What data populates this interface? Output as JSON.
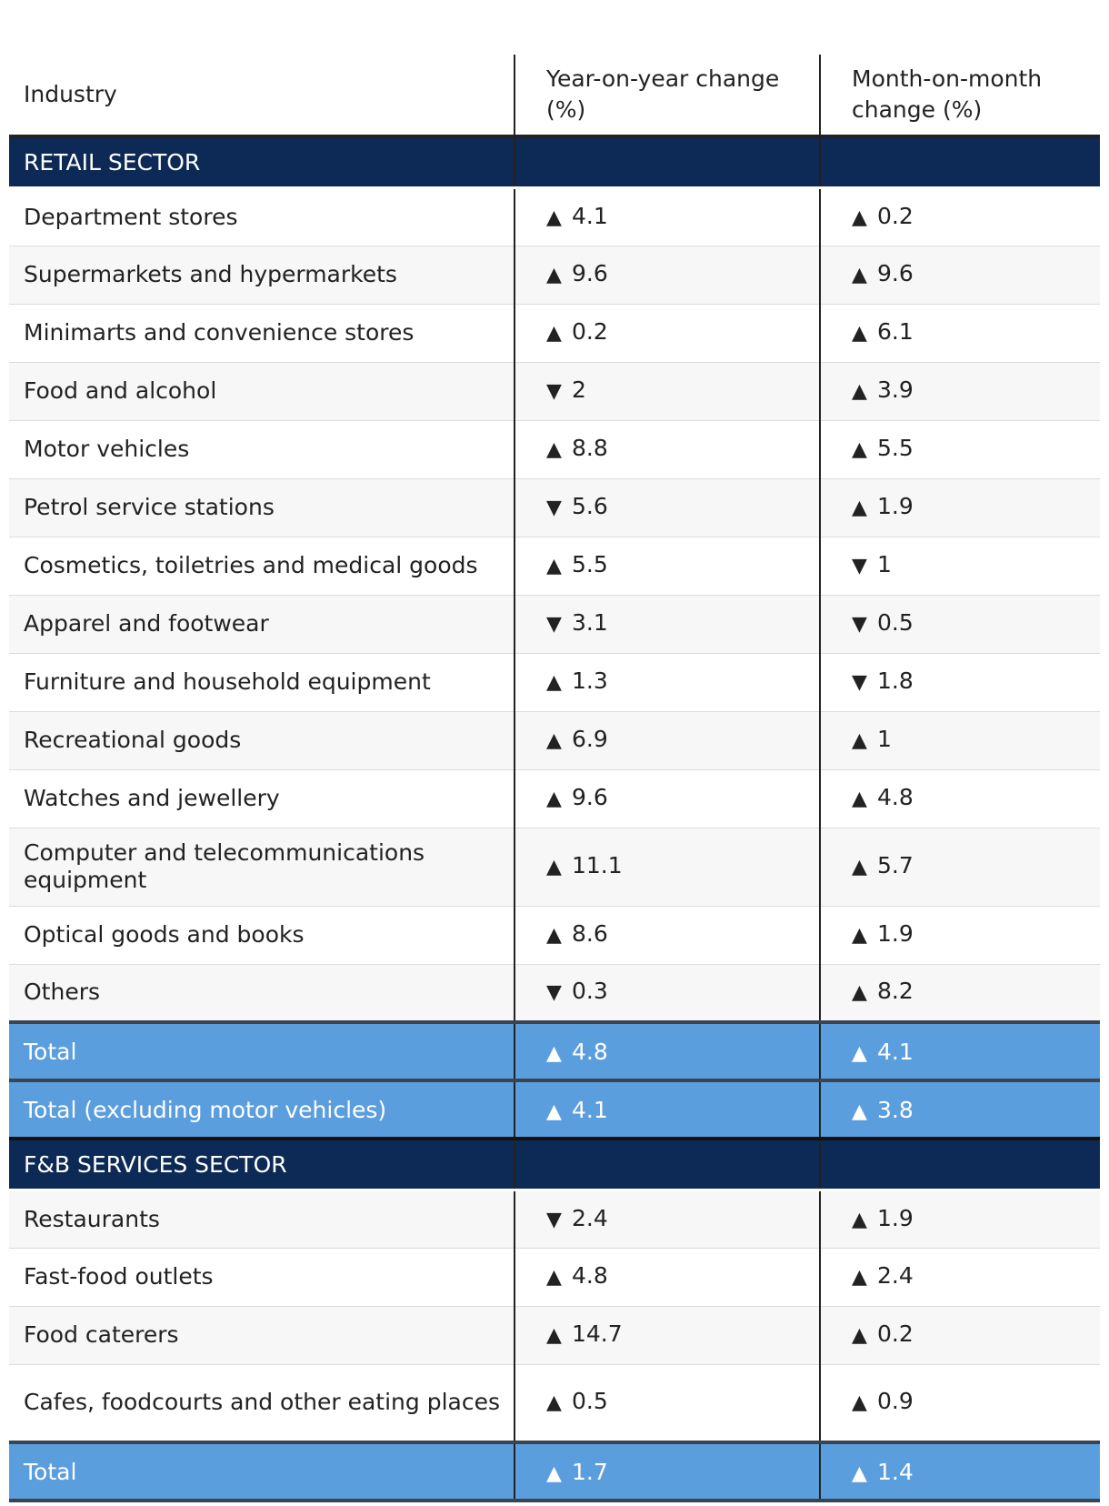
{
  "chart_data": {
    "type": "table",
    "columns": [
      "Industry",
      "Year-on-year change (%)",
      "Month-on-month change (%)"
    ],
    "sections": [
      {
        "name": "RETAIL SECTOR",
        "rows": [
          {
            "industry": "Department stores",
            "yoy": {
              "dir": "up",
              "value": "4.1"
            },
            "mom": {
              "dir": "up",
              "value": "0.2"
            }
          },
          {
            "industry": "Supermarkets and hypermarkets",
            "yoy": {
              "dir": "up",
              "value": "9.6"
            },
            "mom": {
              "dir": "up",
              "value": "9.6"
            }
          },
          {
            "industry": "Minimarts and convenience stores",
            "yoy": {
              "dir": "up",
              "value": "0.2"
            },
            "mom": {
              "dir": "up",
              "value": "6.1"
            }
          },
          {
            "industry": "Food and alcohol",
            "yoy": {
              "dir": "down",
              "value": "2"
            },
            "mom": {
              "dir": "up",
              "value": "3.9"
            }
          },
          {
            "industry": "Motor vehicles",
            "yoy": {
              "dir": "up",
              "value": "8.8"
            },
            "mom": {
              "dir": "up",
              "value": "5.5"
            }
          },
          {
            "industry": "Petrol service stations",
            "yoy": {
              "dir": "down",
              "value": "5.6"
            },
            "mom": {
              "dir": "up",
              "value": "1.9"
            }
          },
          {
            "industry": "Cosmetics, toiletries and medical goods",
            "yoy": {
              "dir": "up",
              "value": "5.5"
            },
            "mom": {
              "dir": "down",
              "value": "1"
            }
          },
          {
            "industry": "Apparel and footwear",
            "yoy": {
              "dir": "down",
              "value": "3.1"
            },
            "mom": {
              "dir": "down",
              "value": "0.5"
            }
          },
          {
            "industry": "Furniture and household equipment",
            "yoy": {
              "dir": "up",
              "value": "1.3"
            },
            "mom": {
              "dir": "down",
              "value": "1.8"
            }
          },
          {
            "industry": "Recreational goods",
            "yoy": {
              "dir": "up",
              "value": "6.9"
            },
            "mom": {
              "dir": "up",
              "value": "1"
            }
          },
          {
            "industry": "Watches and jewellery",
            "yoy": {
              "dir": "up",
              "value": "9.6"
            },
            "mom": {
              "dir": "up",
              "value": "4.8"
            }
          },
          {
            "industry": "Computer and telecommunications equipment",
            "yoy": {
              "dir": "up",
              "value": "11.1"
            },
            "mom": {
              "dir": "up",
              "value": "5.7"
            }
          },
          {
            "industry": "Optical goods and books",
            "yoy": {
              "dir": "up",
              "value": "8.6"
            },
            "mom": {
              "dir": "up",
              "value": "1.9"
            }
          },
          {
            "industry": "Others",
            "yoy": {
              "dir": "down",
              "value": "0.3"
            },
            "mom": {
              "dir": "up",
              "value": "8.2"
            }
          }
        ],
        "totals": [
          {
            "industry": "Total",
            "yoy": {
              "dir": "up",
              "value": "4.8"
            },
            "mom": {
              "dir": "up",
              "value": "4.1"
            }
          },
          {
            "industry": "Total (excluding motor vehicles)",
            "yoy": {
              "dir": "up",
              "value": "4.1"
            },
            "mom": {
              "dir": "up",
              "value": "3.8"
            }
          }
        ]
      },
      {
        "name": "F&B SERVICES SECTOR",
        "rows": [
          {
            "industry": "Restaurants",
            "yoy": {
              "dir": "down",
              "value": "2.4"
            },
            "mom": {
              "dir": "up",
              "value": "1.9"
            }
          },
          {
            "industry": "Fast-food outlets",
            "yoy": {
              "dir": "up",
              "value": "4.8"
            },
            "mom": {
              "dir": "up",
              "value": "2.4"
            }
          },
          {
            "industry": "Food caterers",
            "yoy": {
              "dir": "up",
              "value": "14.7"
            },
            "mom": {
              "dir": "up",
              "value": "0.2"
            }
          },
          {
            "industry": "Cafes, foodcourts and other eating places",
            "yoy": {
              "dir": "up",
              "value": "0.5"
            },
            "mom": {
              "dir": "up",
              "value": "0.9"
            }
          }
        ],
        "totals": [
          {
            "industry": "Total",
            "yoy": {
              "dir": "up",
              "value": "1.7"
            },
            "mom": {
              "dir": "up",
              "value": "1.4"
            }
          }
        ]
      }
    ],
    "colors": {
      "section_header": "#0c2a55",
      "total_row": "#5b9ede"
    },
    "icons": {
      "up": "triangle-up-icon",
      "down": "triangle-down-icon"
    }
  }
}
